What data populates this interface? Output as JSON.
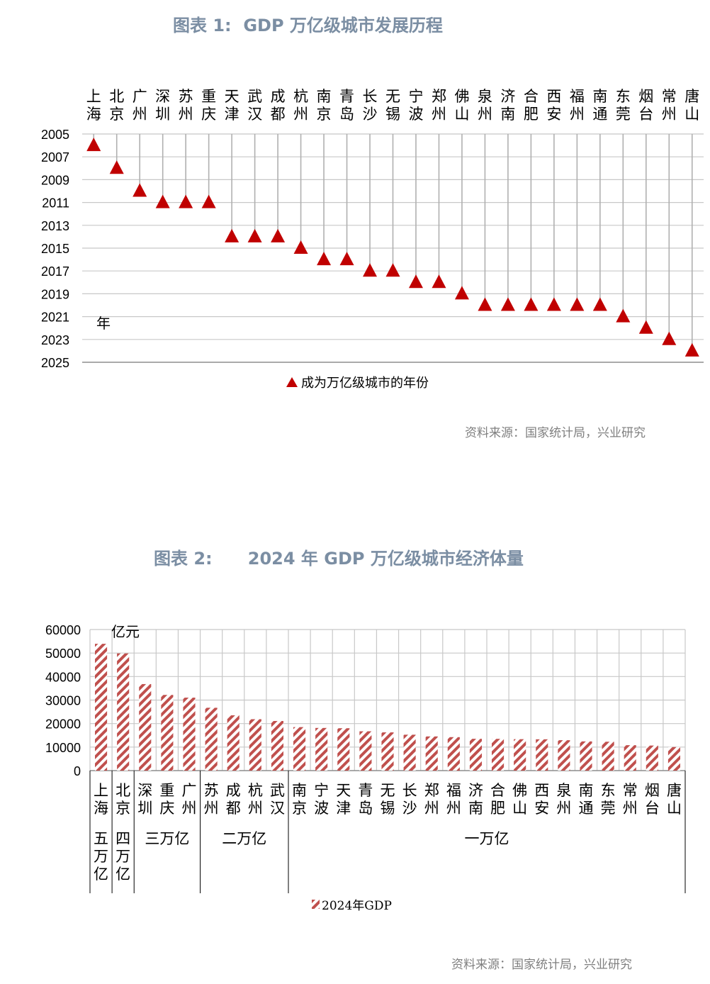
{
  "charts": {
    "fig1": {
      "title": "图表 1:  GDP 万亿级城市发展历程",
      "source": "资料来源：国家统计局，兴业研究"
    },
    "fig2": {
      "title": "图表 2:      2024 年 GDP 万亿级城市经济体量",
      "source": "资料来源：国家统计局，兴业研究"
    }
  },
  "colors": {
    "marker": "#c00000",
    "bar_stripe": "#c0504d",
    "grid": "#c8c8c8",
    "axis": "#7f7f7f",
    "title": "#7b8ea3"
  },
  "chart_data": [
    {
      "type": "scatter",
      "title": "",
      "ylabel": "年",
      "ylim": [
        2005,
        2025
      ],
      "y_ticks": [
        "2005",
        "2007",
        "2009",
        "2011",
        "2013",
        "2015",
        "2017",
        "2019",
        "2021",
        "2023",
        "2025"
      ],
      "y_inverted": true,
      "grid": "vertical drop lines per city and horizontal gridlines",
      "legend": "bottom-center",
      "categories": [
        "上海",
        "北京",
        "广州",
        "深圳",
        "苏州",
        "重庆",
        "天津",
        "武汉",
        "成都",
        "杭州",
        "南京",
        "青岛",
        "长沙",
        "无锡",
        "宁波",
        "郑州",
        "佛山",
        "泉州",
        "济南",
        "合肥",
        "西安",
        "福州",
        "南通",
        "东莞",
        "烟台",
        "常州",
        "唐山"
      ],
      "series": [
        {
          "name": "成为万亿级城市的年份",
          "marker": "triangle",
          "values": [
            2006,
            2008,
            2010,
            2011,
            2011,
            2011,
            2014,
            2014,
            2014,
            2015,
            2016,
            2016,
            2017,
            2017,
            2018,
            2018,
            2019,
            2020,
            2020,
            2020,
            2020,
            2020,
            2020,
            2021,
            2022,
            2023,
            2024
          ]
        }
      ]
    },
    {
      "type": "bar",
      "title": "",
      "ylabel": "亿元",
      "ylim": [
        0,
        60000
      ],
      "y_ticks": [
        "0",
        "10000",
        "20000",
        "30000",
        "40000",
        "50000",
        "60000"
      ],
      "grid": true,
      "legend": "bottom-center",
      "categories": [
        "上海",
        "北京",
        "深圳",
        "重庆",
        "广州",
        "苏州",
        "成都",
        "杭州",
        "武汉",
        "南京",
        "宁波",
        "天津",
        "青岛",
        "无锡",
        "长沙",
        "郑州",
        "福州",
        "济南",
        "合肥",
        "佛山",
        "西安",
        "泉州",
        "南通",
        "东莞",
        "常州",
        "烟台",
        "唐山"
      ],
      "groups": [
        {
          "label": "五万亿",
          "start": 0,
          "end": 0
        },
        {
          "label": "四万亿",
          "start": 1,
          "end": 1
        },
        {
          "label": "三万亿",
          "start": 2,
          "end": 4
        },
        {
          "label": "二万亿",
          "start": 5,
          "end": 8
        },
        {
          "label": "一万亿",
          "start": 9,
          "end": 26
        }
      ],
      "series": [
        {
          "name": "2024年GDP",
          "pattern": "diagonal-stripe",
          "values": [
            53927,
            49843,
            36802,
            32193,
            31033,
            26727,
            23511,
            21861,
            21106,
            18500,
            18148,
            18024,
            16720,
            16263,
            15269,
            14533,
            14237,
            13528,
            13507,
            13362,
            13318,
            12934,
            12422,
            12282,
            10814,
            10662,
            10017
          ]
        }
      ]
    }
  ]
}
